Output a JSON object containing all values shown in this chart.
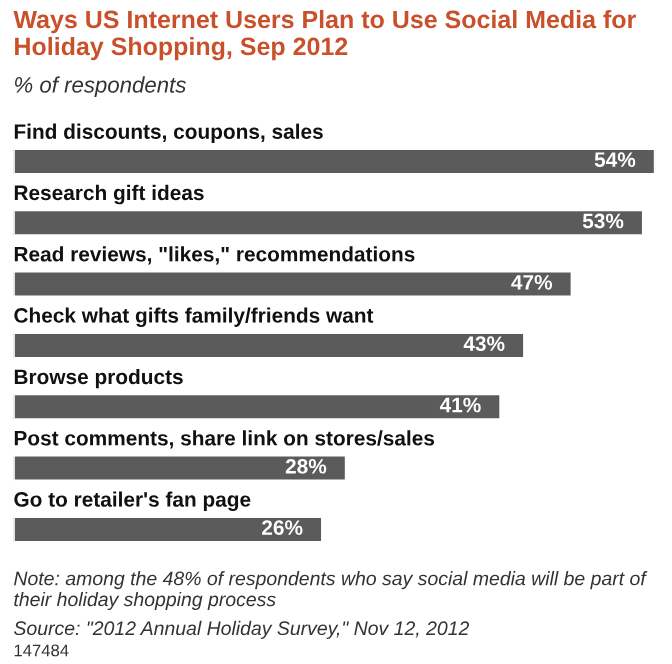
{
  "chart_data": {
    "type": "bar",
    "orientation": "horizontal",
    "title": "Ways US Internet Users Plan to Use Social Media for Holiday Shopping, Sep 2012",
    "subtitle": "% of respondents",
    "categories": [
      "Find discounts, coupons, sales",
      "Research gift ideas",
      "Read reviews, \"likes,\" recommendations",
      "Check what gifts family/friends want",
      "Browse products",
      "Post comments, share link on stores/sales",
      "Go to retailer's fan page"
    ],
    "values": [
      54,
      53,
      47,
      43,
      41,
      28,
      26
    ],
    "value_labels": [
      "54%",
      "53%",
      "47%",
      "43%",
      "41%",
      "28%",
      "26%"
    ],
    "color": "#5b5b5b",
    "annotations": [
      "Note: among the 48% of respondents who say social media will be part of their holiday shopping process",
      "Source: \"2012 Annual Holiday Survey,\" Nov 12, 2012",
      "147484"
    ]
  }
}
